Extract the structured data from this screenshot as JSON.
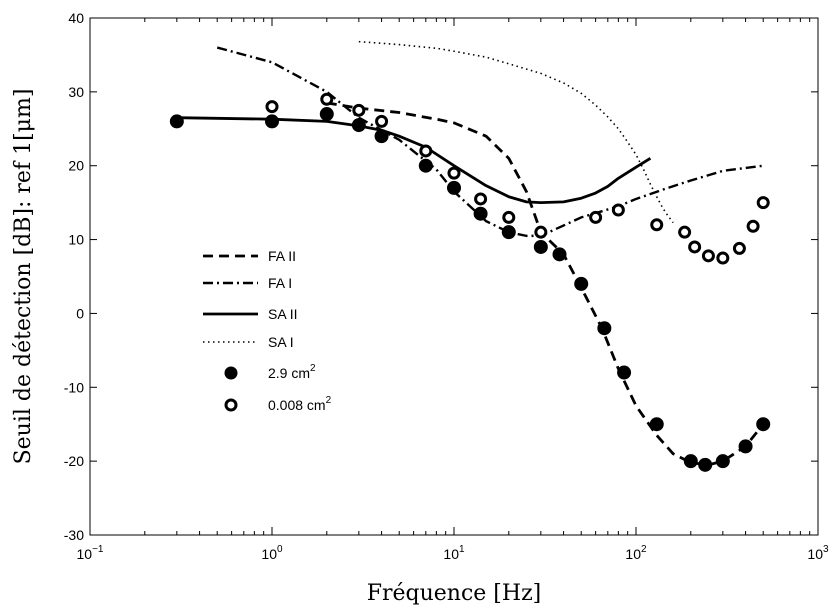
{
  "chart_data": {
    "type": "line",
    "xlabel": "Fréquence [Hz]",
    "ylabel": "Seuil de détection [dB]: ref 1[μm]",
    "x_scale": "log",
    "xlim": [
      0.1,
      1000
    ],
    "ylim": [
      -30,
      40
    ],
    "x_ticks": [
      {
        "value": 0.1,
        "base": "10",
        "exp": "−1"
      },
      {
        "value": 1,
        "base": "10",
        "exp": "0"
      },
      {
        "value": 10,
        "base": "10",
        "exp": "1"
      },
      {
        "value": 100,
        "base": "10",
        "exp": "2"
      },
      {
        "value": 1000,
        "base": "10",
        "exp": "3"
      }
    ],
    "y_ticks": [
      -30,
      -20,
      -10,
      0,
      10,
      20,
      30,
      40
    ],
    "grid": false,
    "legend_position": "center-left",
    "series": [
      {
        "name": "FA II",
        "style": "dashed",
        "color": "#000000",
        "x": [
          2,
          3,
          5,
          8,
          10,
          15,
          20,
          25,
          30,
          40,
          50,
          65,
          80,
          100,
          130,
          160,
          200,
          250,
          300,
          400,
          500
        ],
        "y": [
          28.5,
          27.8,
          27.2,
          26.3,
          25.8,
          24.0,
          21.0,
          16.5,
          11.0,
          8.0,
          3.5,
          -2.0,
          -7.5,
          -12.5,
          -16.5,
          -19.0,
          -20.2,
          -20.5,
          -20.0,
          -18.0,
          -15.0
        ]
      },
      {
        "name": "FA I",
        "style": "dashdot",
        "color": "#000000",
        "x": [
          0.5,
          1,
          2,
          3,
          5,
          8,
          10,
          15,
          20,
          25,
          30,
          50,
          80,
          100,
          150,
          200,
          300,
          500
        ],
        "y": [
          36.0,
          34.0,
          30.0,
          26.5,
          23.5,
          19.5,
          16.5,
          12.5,
          11.0,
          10.5,
          10.5,
          13.0,
          14.5,
          15.5,
          17.0,
          18.0,
          19.3,
          20.0
        ]
      },
      {
        "name": "SA II",
        "style": "solid",
        "color": "#000000",
        "x": [
          0.3,
          1,
          2,
          3,
          4,
          5,
          7,
          10,
          15,
          20,
          25,
          30,
          40,
          50,
          60,
          70,
          80,
          100,
          120
        ],
        "y": [
          26.5,
          26.3,
          26.0,
          25.4,
          24.8,
          24.0,
          22.5,
          20.0,
          17.3,
          15.8,
          15.1,
          15.0,
          15.1,
          15.6,
          16.3,
          17.2,
          18.3,
          19.8,
          21.0
        ]
      },
      {
        "name": "SA I",
        "style": "dotted",
        "color": "#000000",
        "x": [
          3,
          5,
          8,
          10,
          15,
          20,
          30,
          40,
          50,
          60,
          70,
          80,
          90,
          100,
          110,
          120,
          130,
          140,
          150,
          160
        ],
        "y": [
          36.8,
          36.4,
          35.9,
          35.5,
          34.7,
          33.8,
          32.5,
          31.2,
          29.8,
          28.2,
          26.6,
          25.0,
          23.2,
          21.5,
          19.5,
          17.5,
          15.8,
          14.3,
          13.2,
          12.3
        ]
      },
      {
        "name": "2.9 cm²",
        "label": "2.9 cm",
        "sup": "2",
        "style": "filled-circle",
        "color": "#000000",
        "x": [
          0.3,
          1,
          2,
          3,
          4,
          7,
          10,
          14,
          20,
          30,
          38,
          50,
          67,
          86,
          130,
          200,
          240,
          300,
          400,
          500
        ],
        "y": [
          26,
          26,
          27,
          25.5,
          24,
          20,
          17,
          13.5,
          11,
          9,
          8,
          4,
          -2,
          -8,
          -15,
          -20,
          -20.5,
          -20,
          -18,
          -15
        ]
      },
      {
        "name": "0.008 cm²",
        "label": "0.008 cm",
        "sup": "2",
        "style": "open-circle",
        "color": "#000000",
        "x": [
          1,
          2,
          3,
          4,
          7,
          10,
          14,
          20,
          30,
          60,
          80,
          130,
          185,
          210,
          250,
          300,
          370,
          440,
          500
        ],
        "y": [
          28,
          29,
          27.5,
          26,
          22,
          19,
          15.5,
          13,
          11,
          13,
          14,
          12,
          11,
          9,
          7.8,
          7.5,
          8.8,
          11.8,
          15
        ]
      }
    ]
  }
}
